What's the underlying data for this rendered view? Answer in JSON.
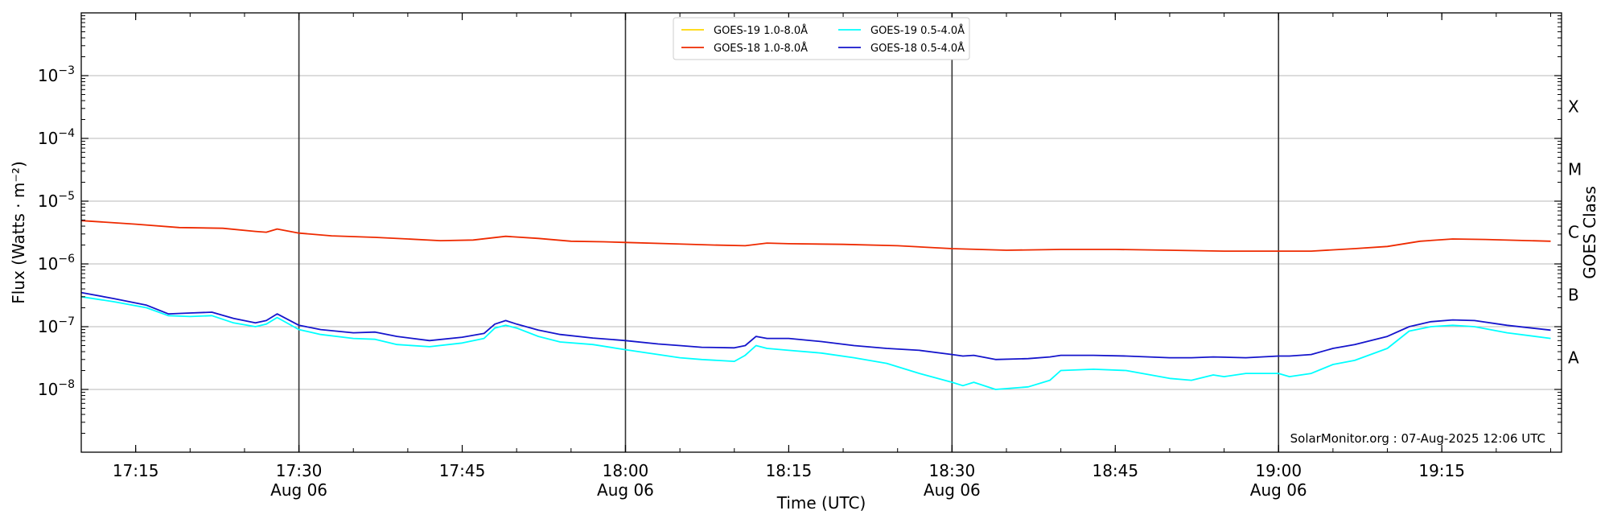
{
  "chart_data": {
    "type": "line",
    "xlabel": "Time (UTC)",
    "ylabel": "Flux (Watts · m⁻²)",
    "y2label": "GOES Class",
    "yscale": "log",
    "ylim": [
      1e-09,
      0.01
    ],
    "xlim": [
      "2025-08-06 17:10",
      "2025-08-06 19:26"
    ],
    "x_ticks": [
      {
        "t": "17:15",
        "label": "17:15",
        "date": ""
      },
      {
        "t": "17:30",
        "label": "17:30",
        "date": "Aug 06"
      },
      {
        "t": "17:45",
        "label": "17:45",
        "date": ""
      },
      {
        "t": "18:00",
        "label": "18:00",
        "date": "Aug 06"
      },
      {
        "t": "18:15",
        "label": "18:15",
        "date": ""
      },
      {
        "t": "18:30",
        "label": "18:30",
        "date": "Aug 06"
      },
      {
        "t": "18:45",
        "label": "18:45",
        "date": ""
      },
      {
        "t": "19:00",
        "label": "19:00",
        "date": "Aug 06"
      },
      {
        "t": "19:15",
        "label": "19:15",
        "date": ""
      }
    ],
    "vlines": [
      "17:30",
      "18:00",
      "18:30",
      "19:00"
    ],
    "y_ticks": [
      {
        "exp": -8,
        "value": 1e-08
      },
      {
        "exp": -7,
        "value": 1e-07
      },
      {
        "exp": -6,
        "value": 1e-06
      },
      {
        "exp": -5,
        "value": 1e-05
      },
      {
        "exp": -4,
        "value": 0.0001
      },
      {
        "exp": -3,
        "value": 0.001
      }
    ],
    "goes_classes": [
      {
        "label": "A",
        "value": 3.2e-08
      },
      {
        "label": "B",
        "value": 3.2e-07
      },
      {
        "label": "C",
        "value": 3.2e-06
      },
      {
        "label": "M",
        "value": 3.2e-05
      },
      {
        "label": "X",
        "value": 0.00032
      }
    ],
    "grid": true,
    "legend_position": "top-center",
    "credit": "SolarMonitor.org : 07-Aug-2025 12:06 UTC",
    "series": [
      {
        "name": "GOES-19 1.0-8.0Å",
        "color": "#ffd700",
        "points": []
      },
      {
        "name": "GOES-18 1.0-8.0Å",
        "color": "#ee2a00",
        "points": [
          [
            "17:10",
            4.9e-06
          ],
          [
            "17:15",
            4.3e-06
          ],
          [
            "17:19",
            3.8e-06
          ],
          [
            "17:23",
            3.7e-06
          ],
          [
            "17:26",
            3.3e-06
          ],
          [
            "17:27",
            3.2e-06
          ],
          [
            "17:28",
            3.6e-06
          ],
          [
            "17:30",
            3.1e-06
          ],
          [
            "17:33",
            2.8e-06
          ],
          [
            "17:37",
            2.65e-06
          ],
          [
            "17:40",
            2.5e-06
          ],
          [
            "17:43",
            2.35e-06
          ],
          [
            "17:46",
            2.4e-06
          ],
          [
            "17:49",
            2.75e-06
          ],
          [
            "17:52",
            2.55e-06
          ],
          [
            "17:55",
            2.3e-06
          ],
          [
            "17:58",
            2.25e-06
          ],
          [
            "18:00",
            2.2e-06
          ],
          [
            "18:04",
            2.1e-06
          ],
          [
            "18:08",
            2e-06
          ],
          [
            "18:11",
            1.95e-06
          ],
          [
            "18:13",
            2.15e-06
          ],
          [
            "18:15",
            2.1e-06
          ],
          [
            "18:20",
            2.05e-06
          ],
          [
            "18:25",
            1.95e-06
          ],
          [
            "18:30",
            1.75e-06
          ],
          [
            "18:35",
            1.65e-06
          ],
          [
            "18:40",
            1.7e-06
          ],
          [
            "18:45",
            1.7e-06
          ],
          [
            "18:50",
            1.65e-06
          ],
          [
            "18:55",
            1.6e-06
          ],
          [
            "19:00",
            1.6e-06
          ],
          [
            "19:03",
            1.6e-06
          ],
          [
            "19:07",
            1.75e-06
          ],
          [
            "19:10",
            1.9e-06
          ],
          [
            "19:13",
            2.3e-06
          ],
          [
            "19:16",
            2.5e-06
          ],
          [
            "19:19",
            2.45e-06
          ],
          [
            "19:25",
            2.3e-06
          ]
        ]
      },
      {
        "name": "GOES-19 0.5-4.0Å",
        "color": "#00ffff",
        "points": [
          [
            "17:10",
            3e-07
          ],
          [
            "17:13",
            2.5e-07
          ],
          [
            "17:16",
            2e-07
          ],
          [
            "17:18",
            1.5e-07
          ],
          [
            "17:20",
            1.45e-07
          ],
          [
            "17:22",
            1.5e-07
          ],
          [
            "17:24",
            1.15e-07
          ],
          [
            "17:26",
            1e-07
          ],
          [
            "17:27",
            1.1e-07
          ],
          [
            "17:28",
            1.4e-07
          ],
          [
            "17:30",
            9e-08
          ],
          [
            "17:32",
            7.5e-08
          ],
          [
            "17:35",
            6.5e-08
          ],
          [
            "17:37",
            6.3e-08
          ],
          [
            "17:39",
            5.2e-08
          ],
          [
            "17:42",
            4.8e-08
          ],
          [
            "17:45",
            5.5e-08
          ],
          [
            "17:47",
            6.5e-08
          ],
          [
            "17:48",
            9.5e-08
          ],
          [
            "17:49",
            1.05e-07
          ],
          [
            "17:50",
            9.5e-08
          ],
          [
            "17:52",
            7e-08
          ],
          [
            "17:54",
            5.7e-08
          ],
          [
            "17:57",
            5.2e-08
          ],
          [
            "18:00",
            4.3e-08
          ],
          [
            "18:03",
            3.6e-08
          ],
          [
            "18:05",
            3.2e-08
          ],
          [
            "18:07",
            3e-08
          ],
          [
            "18:10",
            2.8e-08
          ],
          [
            "18:11",
            3.5e-08
          ],
          [
            "18:12",
            5e-08
          ],
          [
            "18:13",
            4.5e-08
          ],
          [
            "18:15",
            4.2e-08
          ],
          [
            "18:18",
            3.8e-08
          ],
          [
            "18:21",
            3.2e-08
          ],
          [
            "18:24",
            2.6e-08
          ],
          [
            "18:27",
            1.8e-08
          ],
          [
            "18:30",
            1.3e-08
          ],
          [
            "18:31",
            1.15e-08
          ],
          [
            "18:32",
            1.3e-08
          ],
          [
            "18:34",
            1e-08
          ],
          [
            "18:37",
            1.1e-08
          ],
          [
            "18:39",
            1.4e-08
          ],
          [
            "18:40",
            2e-08
          ],
          [
            "18:43",
            2.1e-08
          ],
          [
            "18:46",
            2e-08
          ],
          [
            "18:50",
            1.5e-08
          ],
          [
            "18:52",
            1.4e-08
          ],
          [
            "18:54",
            1.7e-08
          ],
          [
            "18:55",
            1.6e-08
          ],
          [
            "18:57",
            1.8e-08
          ],
          [
            "19:00",
            1.8e-08
          ],
          [
            "19:01",
            1.6e-08
          ],
          [
            "19:03",
            1.8e-08
          ],
          [
            "19:05",
            2.5e-08
          ],
          [
            "19:07",
            2.9e-08
          ],
          [
            "19:10",
            4.5e-08
          ],
          [
            "19:12",
            8.5e-08
          ],
          [
            "19:14",
            1e-07
          ],
          [
            "19:16",
            1.05e-07
          ],
          [
            "19:18",
            1e-07
          ],
          [
            "19:21",
            8e-08
          ],
          [
            "19:25",
            6.5e-08
          ]
        ]
      },
      {
        "name": "GOES-18 0.5-4.0Å",
        "color": "#1515cc",
        "points": [
          [
            "17:10",
            3.5e-07
          ],
          [
            "17:13",
            2.8e-07
          ],
          [
            "17:16",
            2.2e-07
          ],
          [
            "17:18",
            1.6e-07
          ],
          [
            "17:20",
            1.65e-07
          ],
          [
            "17:22",
            1.7e-07
          ],
          [
            "17:24",
            1.35e-07
          ],
          [
            "17:26",
            1.15e-07
          ],
          [
            "17:27",
            1.25e-07
          ],
          [
            "17:28",
            1.6e-07
          ],
          [
            "17:30",
            1.05e-07
          ],
          [
            "17:32",
            9e-08
          ],
          [
            "17:35",
            8e-08
          ],
          [
            "17:37",
            8.2e-08
          ],
          [
            "17:39",
            7e-08
          ],
          [
            "17:42",
            6e-08
          ],
          [
            "17:45",
            6.8e-08
          ],
          [
            "17:47",
            7.8e-08
          ],
          [
            "17:48",
            1.1e-07
          ],
          [
            "17:49",
            1.25e-07
          ],
          [
            "17:50",
            1.1e-07
          ],
          [
            "17:52",
            8.8e-08
          ],
          [
            "17:54",
            7.5e-08
          ],
          [
            "17:57",
            6.6e-08
          ],
          [
            "18:00",
            6e-08
          ],
          [
            "18:03",
            5.3e-08
          ],
          [
            "18:05",
            5e-08
          ],
          [
            "18:07",
            4.7e-08
          ],
          [
            "18:10",
            4.6e-08
          ],
          [
            "18:11",
            5e-08
          ],
          [
            "18:12",
            7e-08
          ],
          [
            "18:13",
            6.5e-08
          ],
          [
            "18:15",
            6.5e-08
          ],
          [
            "18:18",
            5.8e-08
          ],
          [
            "18:21",
            5e-08
          ],
          [
            "18:24",
            4.5e-08
          ],
          [
            "18:27",
            4.2e-08
          ],
          [
            "18:30",
            3.6e-08
          ],
          [
            "18:31",
            3.4e-08
          ],
          [
            "18:32",
            3.5e-08
          ],
          [
            "18:34",
            3e-08
          ],
          [
            "18:37",
            3.1e-08
          ],
          [
            "18:39",
            3.3e-08
          ],
          [
            "18:40",
            3.5e-08
          ],
          [
            "18:43",
            3.5e-08
          ],
          [
            "18:46",
            3.4e-08
          ],
          [
            "18:50",
            3.2e-08
          ],
          [
            "18:52",
            3.2e-08
          ],
          [
            "18:54",
            3.3e-08
          ],
          [
            "18:57",
            3.2e-08
          ],
          [
            "19:00",
            3.4e-08
          ],
          [
            "19:01",
            3.4e-08
          ],
          [
            "19:03",
            3.6e-08
          ],
          [
            "19:05",
            4.5e-08
          ],
          [
            "19:07",
            5.2e-08
          ],
          [
            "19:10",
            7e-08
          ],
          [
            "19:12",
            1e-07
          ],
          [
            "19:14",
            1.2e-07
          ],
          [
            "19:16",
            1.28e-07
          ],
          [
            "19:18",
            1.25e-07
          ],
          [
            "19:21",
            1.05e-07
          ],
          [
            "19:25",
            8.8e-08
          ]
        ]
      }
    ]
  }
}
